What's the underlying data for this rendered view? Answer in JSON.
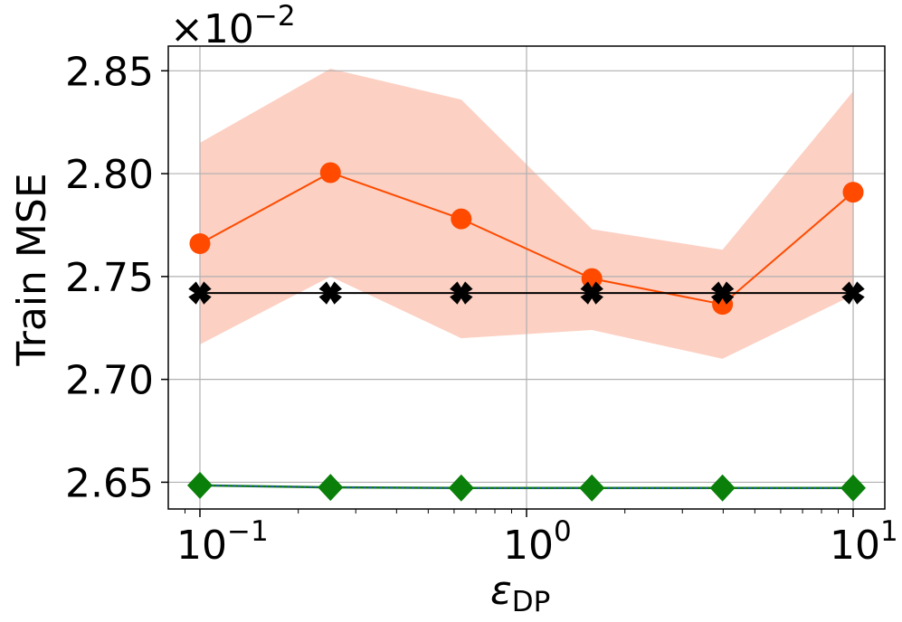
{
  "chart_data": {
    "type": "line",
    "title": "",
    "xlabel_symbol": "ε",
    "xlabel_sub": "DP",
    "ylabel": "Train MSE",
    "x_scale": "log",
    "x": [
      0.1,
      0.251,
      0.631,
      1.585,
      3.981,
      10.0
    ],
    "xlim": [
      0.08,
      12.5
    ],
    "ylim": [
      2.637,
      2.862
    ],
    "y_offset_base": "×10",
    "y_offset_exp": "−2",
    "x_ticks": [
      {
        "value": 0.1,
        "base": "10",
        "exp": "−1"
      },
      {
        "value": 1,
        "base": "10",
        "exp": "0"
      },
      {
        "value": 10,
        "base": "10",
        "exp": "1"
      }
    ],
    "y_ticks": [
      {
        "value": 2.65,
        "label": "2.65"
      },
      {
        "value": 2.7,
        "label": "2.70"
      },
      {
        "value": 2.75,
        "label": "2.75"
      },
      {
        "value": 2.8,
        "label": "2.80"
      },
      {
        "value": 2.85,
        "label": "2.85"
      }
    ],
    "grid": true,
    "series": [
      {
        "marker": "circle",
        "color": "#ff4a00",
        "band_color": "#fcd0c2",
        "values": [
          2.766,
          2.8005,
          2.778,
          2.749,
          2.7365,
          2.791
        ],
        "band_upper": [
          2.815,
          2.851,
          2.836,
          2.773,
          2.763,
          2.84
        ],
        "band_lower": [
          2.717,
          2.75,
          2.72,
          2.724,
          2.71,
          2.741
        ]
      },
      {
        "marker": "x",
        "color": "#000000",
        "values": [
          2.742,
          2.742,
          2.742,
          2.742,
          2.742,
          2.742
        ]
      },
      {
        "marker": "diamond",
        "color": "#0a7f0a",
        "line_color": "#2a4fbf",
        "values": [
          2.6485,
          2.6475,
          2.6472,
          2.6472,
          2.6472,
          2.6472
        ]
      }
    ]
  }
}
